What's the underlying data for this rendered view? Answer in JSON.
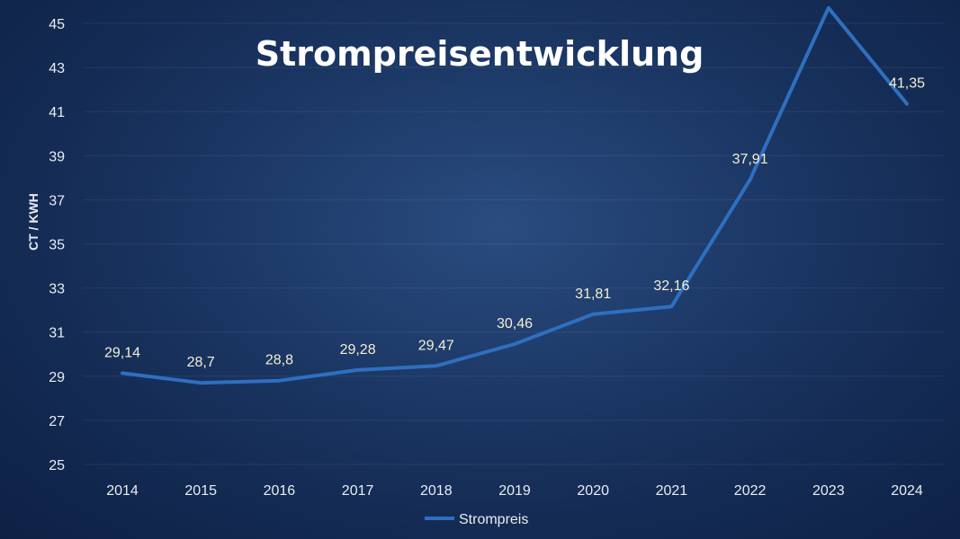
{
  "chart_data": {
    "type": "line",
    "title": "Strompreisentwicklung",
    "xlabel": "",
    "ylabel": "CT / KWH",
    "categories": [
      "2014",
      "2015",
      "2016",
      "2017",
      "2018",
      "2019",
      "2020",
      "2021",
      "2022",
      "2023",
      "2024"
    ],
    "series": [
      {
        "name": "Strompreis",
        "values": [
          29.14,
          28.7,
          28.8,
          29.28,
          29.47,
          30.46,
          31.81,
          32.16,
          37.91,
          45.7,
          41.35
        ],
        "labels": [
          "29,14",
          "28,7",
          "28,8",
          "29,28",
          "29,47",
          "30,46",
          "31,81",
          "32,16",
          "37,91",
          "",
          "41,35"
        ]
      }
    ],
    "ylim": [
      25,
      45
    ],
    "yticks": [
      "25",
      "27",
      "29",
      "31",
      "33",
      "35",
      "37",
      "39",
      "41",
      "43",
      "45"
    ],
    "ytick_values": [
      25,
      27,
      29,
      31,
      33,
      35,
      37,
      39,
      41,
      43,
      45
    ],
    "grid": true,
    "legend_position": "bottom",
    "colors": {
      "line": "#2f6fbf",
      "text": "#e8ecf4",
      "data_label": "#f3efd2",
      "background": "#16305c"
    }
  }
}
